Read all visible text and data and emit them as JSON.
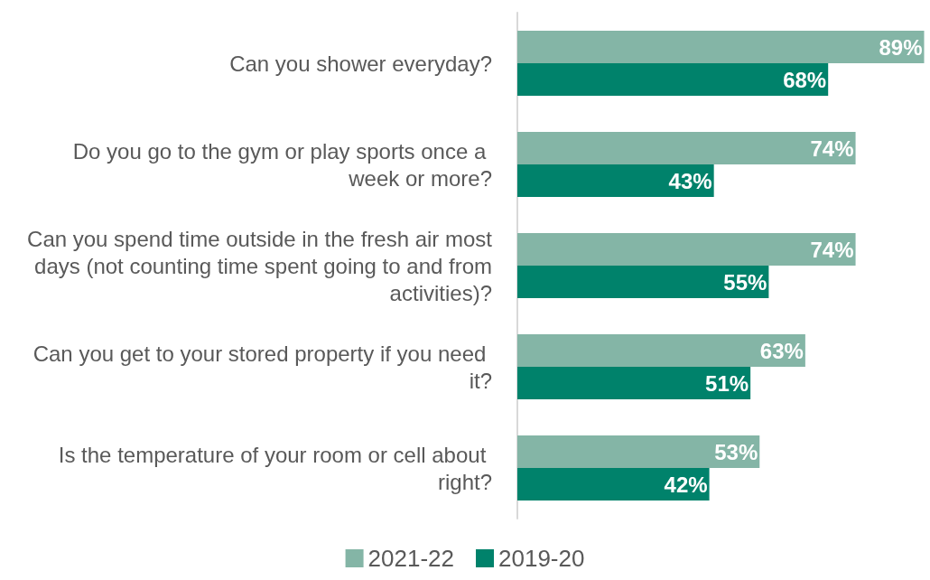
{
  "chart_data": {
    "type": "bar",
    "orientation": "horizontal",
    "categories": [
      "Can you shower everyday?",
      "Do you go to the gym or play sports once a week or more?",
      "Can you spend time outside in the fresh air most days (not counting time spent going to and from activities)?",
      "Can you get to your stored property if you need it?",
      "Is the temperature of your room or cell about right?"
    ],
    "series": [
      {
        "name": "2021-22",
        "color": "#84b5a6",
        "values": [
          89,
          74,
          74,
          63,
          53
        ],
        "value_labels": [
          "89%",
          "74%",
          "74%",
          "63%",
          "53%"
        ]
      },
      {
        "name": "2019-20",
        "color": "#00826b",
        "values": [
          68,
          43,
          55,
          51,
          42
        ],
        "value_labels": [
          "68%",
          "43%",
          "55%",
          "51%",
          "42%"
        ]
      }
    ],
    "legend": "bottom"
  }
}
